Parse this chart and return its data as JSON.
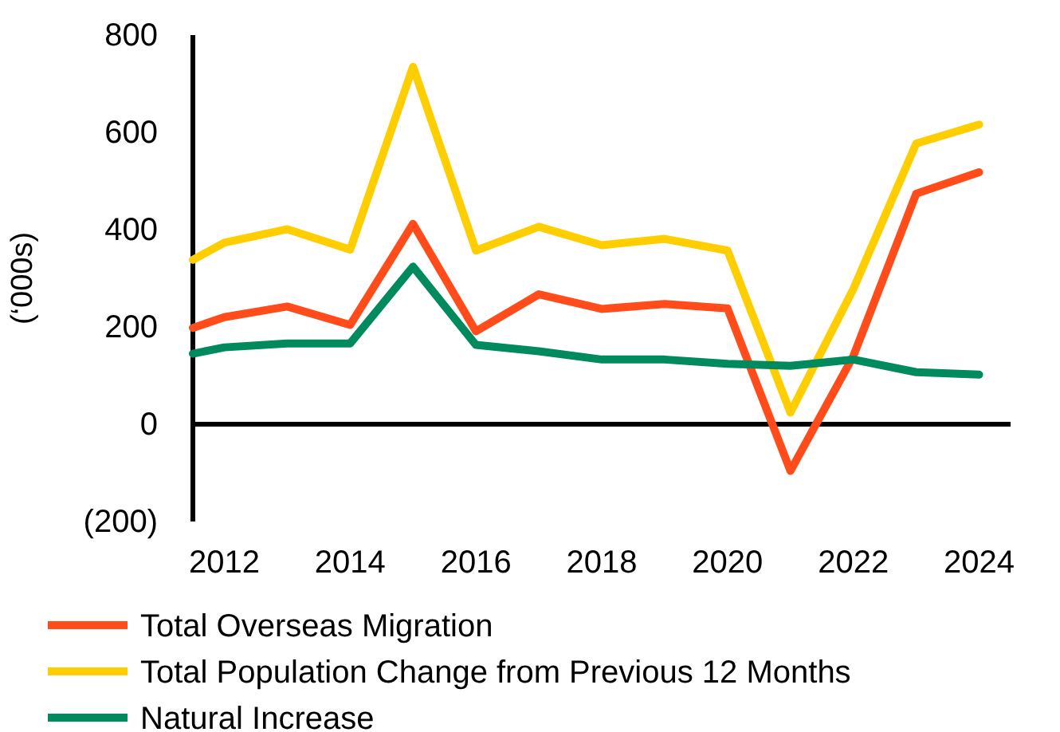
{
  "chart_data": {
    "type": "line",
    "ylabel": "(‘000s)",
    "x": [
      2011.5,
      2012,
      2013,
      2014,
      2015,
      2016,
      2017,
      2018,
      2019,
      2020,
      2021,
      2022,
      2023,
      2024
    ],
    "series": [
      {
        "name": "Total Overseas Migration",
        "color": "#ff4c1a",
        "values": [
          198,
          220,
          242,
          204,
          412,
          191,
          267,
          237,
          247,
          238,
          -96,
          140,
          474,
          518
        ]
      },
      {
        "name": "Total Population Change from Previous 12 Months",
        "color": "#ffce00",
        "values": [
          338,
          373,
          401,
          359,
          735,
          357,
          406,
          368,
          381,
          357,
          24,
          278,
          577,
          616
        ]
      },
      {
        "name": "Natural Increase",
        "color": "#008a5e",
        "values": [
          145,
          158,
          166,
          166,
          324,
          163,
          150,
          133,
          133,
          124,
          120,
          133,
          107,
          102
        ]
      }
    ],
    "xlim": [
      2011.5,
      2024.5
    ],
    "xticks": [
      2012,
      2014,
      2016,
      2018,
      2020,
      2022,
      2024
    ],
    "ylim": [
      -200,
      800
    ],
    "yticks": [
      {
        "value": -200,
        "label": "(200)"
      },
      0,
      200,
      400,
      600,
      800
    ],
    "legend": "bottom",
    "marker": "none",
    "line_style": "solid"
  }
}
